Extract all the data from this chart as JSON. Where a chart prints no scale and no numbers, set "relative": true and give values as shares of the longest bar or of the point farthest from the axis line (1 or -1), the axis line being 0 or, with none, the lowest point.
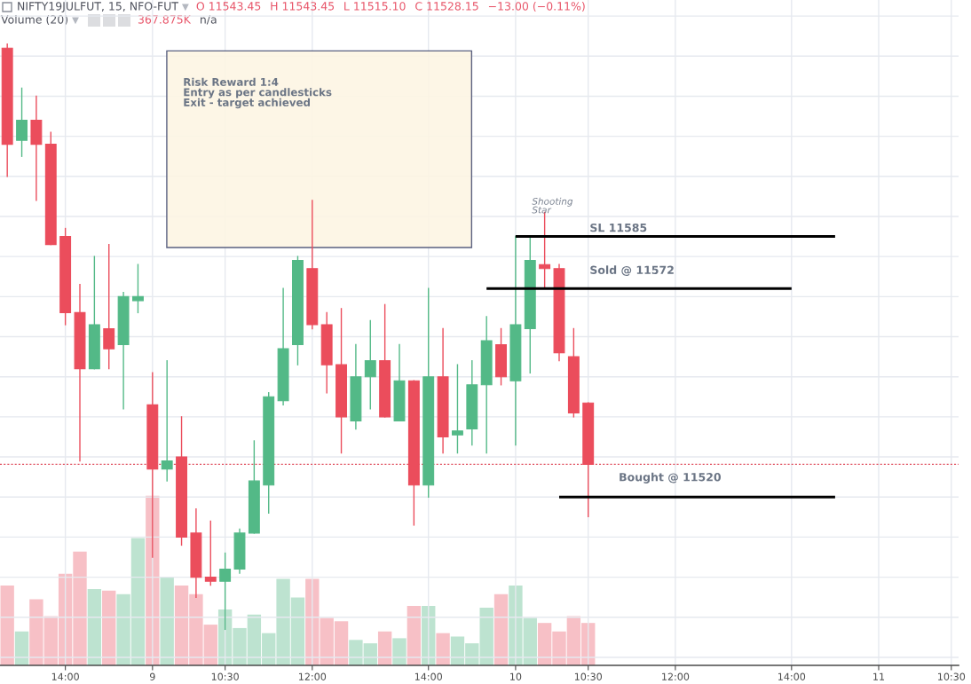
{
  "chart_data": [
    {
      "type": "candlestick",
      "title": "NIFTY19JULFUT, 15, NFO-FUT",
      "categories": [
        null,
        null,
        null,
        null,
        "14:00",
        null,
        null,
        null,
        null,
        null,
        "9",
        null,
        null,
        null,
        null,
        "10:30",
        null,
        null,
        null,
        null,
        null,
        "12:00",
        null,
        null,
        null,
        null,
        null,
        null,
        null,
        "14:00",
        null,
        null,
        null,
        null,
        null,
        "10",
        null,
        null,
        null,
        null,
        "10:30",
        null,
        null,
        null,
        null,
        null,
        "12:00",
        null,
        null,
        null,
        null,
        null,
        null,
        null,
        "14:00",
        null,
        null,
        null,
        null,
        null,
        "11",
        null,
        null,
        null,
        null,
        "10:30"
      ],
      "ohlc": [
        [
          11632,
          11633,
          11600,
          11608
        ],
        [
          11609,
          11622,
          11605,
          11614
        ],
        [
          11614,
          11620,
          11594,
          11608
        ],
        [
          11608,
          11611,
          11583,
          11583
        ],
        [
          11585,
          11587,
          11563,
          11566
        ],
        [
          11566,
          11573,
          11529,
          11552
        ],
        [
          11552,
          11580,
          11552,
          11563
        ],
        [
          11562,
          11583,
          11552,
          11557
        ],
        [
          11558,
          11571,
          11542,
          11570
        ],
        [
          11569,
          11578,
          11566,
          11570
        ],
        [
          11543,
          11551,
          11505,
          11527
        ],
        [
          11527,
          11554,
          11524,
          11529
        ],
        [
          11530,
          11540,
          11508,
          11510
        ],
        [
          11511,
          11517,
          11495,
          11500
        ],
        [
          11500,
          11514,
          11498,
          11499
        ],
        [
          11499,
          11506,
          11487,
          11502
        ],
        [
          11502,
          11512,
          11501,
          11511
        ],
        [
          11511,
          11534,
          11511,
          11524
        ],
        [
          11523,
          11546,
          11516,
          11545
        ],
        [
          11544,
          11572,
          11543,
          11557
        ],
        [
          11558,
          11580,
          11553,
          11579
        ],
        [
          11577,
          11594,
          11562,
          11563
        ],
        [
          11563,
          11566,
          11546,
          11553
        ],
        [
          11553,
          11567,
          11531,
          11540
        ],
        [
          11539,
          11558,
          11537,
          11550
        ],
        [
          11550,
          11564,
          11542,
          11554
        ],
        [
          11554,
          11568,
          11540,
          11540
        ],
        [
          11539,
          11558,
          11539,
          11549
        ],
        [
          11549,
          11549,
          11513,
          11523
        ],
        [
          11523,
          11572,
          11520,
          11550
        ],
        [
          11550,
          11562,
          11531,
          11535
        ],
        [
          11535.5,
          11553,
          11531,
          11536.5
        ],
        [
          11537,
          11554,
          11533,
          11548
        ],
        [
          11548,
          11565,
          11531,
          11559
        ],
        [
          11558,
          11562,
          11548,
          11550
        ],
        [
          11549,
          11585,
          11533,
          11563
        ],
        [
          11562,
          11585,
          11551,
          11579
        ],
        [
          11578,
          11591,
          11572,
          11577
        ],
        [
          11577,
          11578,
          11554,
          11556
        ],
        [
          11555,
          11562,
          11540,
          11541
        ],
        [
          11543.45,
          11543.45,
          11515.1,
          11528.15
        ],
        null,
        null,
        null,
        null,
        null,
        null,
        null,
        null,
        null,
        null,
        null,
        null,
        null,
        null,
        null,
        null,
        null,
        null,
        null,
        null,
        null,
        null,
        null,
        null,
        null
      ],
      "colors": [
        "#eb4d5c",
        "#53b987",
        "#eb4d5c",
        "#eb4d5c",
        "#eb4d5c",
        "#eb4d5c",
        "#53b987",
        "#eb4d5c",
        "#53b987",
        "#53b987",
        "#eb4d5c",
        "#53b987",
        "#eb4d5c",
        "#eb4d5c",
        "#eb4d5c",
        "#53b987",
        "#53b987",
        "#53b987",
        "#53b987",
        "#53b987",
        "#53b987",
        "#eb4d5c",
        "#eb4d5c",
        "#eb4d5c",
        "#53b987",
        "#53b987",
        "#eb4d5c",
        "#53b987",
        "#eb4d5c",
        "#53b987",
        "#eb4d5c",
        "#53b987",
        "#53b987",
        "#53b987",
        "#eb4d5c",
        "#53b987",
        "#53b987",
        "#eb4d5c",
        "#eb4d5c",
        "#eb4d5c",
        "#eb4d5c",
        null,
        null,
        null,
        null,
        null,
        null,
        null,
        null,
        null,
        null,
        null,
        null,
        null,
        null,
        null,
        null,
        null,
        null,
        null,
        null,
        null,
        null,
        null,
        null,
        null
      ],
      "ylim": [
        11478,
        11644
      ],
      "yticks": [
        {
          "value": 11480,
          "label": null
        },
        {
          "value": 11490,
          "label": null
        },
        {
          "value": 11500,
          "label": null
        },
        {
          "value": 11510,
          "label": null
        },
        {
          "value": 11520,
          "label": null
        },
        {
          "value": 11530,
          "label": null
        },
        {
          "value": 11540,
          "label": null
        },
        {
          "value": 11550,
          "label": null
        },
        {
          "value": 11560,
          "label": null
        },
        {
          "value": 11570,
          "label": null
        },
        {
          "value": 11580,
          "label": null
        },
        {
          "value": 11590,
          "label": null
        },
        {
          "value": 11600,
          "label": null
        },
        {
          "value": 11610,
          "label": null
        },
        {
          "value": 11620,
          "label": null
        },
        {
          "value": 11630,
          "label": null
        },
        {
          "value": 11640,
          "label": null
        }
      ],
      "tick_labels": "x",
      "grid": true,
      "ref_lines": [
        {
          "axis": "y",
          "value": 11585,
          "label": "SL 11585",
          "color": "#000000"
        },
        {
          "axis": "y",
          "value": 11572,
          "label": "Sold @ 11572",
          "color": "#000000"
        },
        {
          "axis": "y",
          "value": 11520,
          "label": "Bought @ 11520",
          "color": "#000000"
        },
        {
          "axis": "y",
          "value": 11528.15,
          "color": "#e0505f",
          "line_style": "dotted"
        }
      ],
      "annotations": [
        "O 11543.45",
        "H 11543.45",
        "L 11515.10",
        "C 11528.15",
        "−13.00 (−0.11%)",
        "Risk Reward 1:4\nEntry as per candlesticks\nExit - target achieved",
        "Shooting\nStar"
      ]
    },
    {
      "type": "bar",
      "title": "Volume (20)",
      "relative": true,
      "tick_labels": false,
      "categories": [
        null,
        null,
        null,
        null,
        null,
        null,
        null,
        null,
        null,
        null,
        null,
        null,
        null,
        null,
        null,
        null,
        null,
        null,
        null,
        null,
        null,
        null,
        null,
        null,
        null,
        null,
        null,
        null,
        null,
        null,
        null,
        null,
        null,
        null,
        null,
        null,
        null,
        null,
        null,
        null,
        null,
        null,
        null,
        null,
        null,
        null,
        null,
        null,
        null,
        null,
        null,
        null,
        null,
        null,
        null,
        null,
        null,
        null,
        null,
        null,
        null,
        null,
        null,
        null,
        null,
        null
      ],
      "values": [
        0.47,
        0.2,
        0.39,
        0.29,
        0.54,
        0.67,
        0.45,
        0.44,
        0.42,
        0.75,
        1.0,
        0.52,
        0.47,
        0.42,
        0.24,
        0.33,
        0.22,
        0.3,
        0.19,
        0.51,
        0.4,
        0.51,
        0.28,
        0.26,
        0.15,
        0.13,
        0.2,
        0.16,
        0.35,
        0.35,
        0.19,
        0.17,
        0.13,
        0.34,
        0.42,
        0.47,
        0.28,
        0.25,
        0.2,
        0.29,
        0.25,
        null,
        null,
        null,
        null,
        null,
        null,
        null,
        null,
        null,
        null,
        null,
        null,
        null,
        null,
        null,
        null,
        null,
        null,
        null,
        null,
        null,
        null,
        null,
        null,
        null
      ],
      "colors": [
        "#f7c0c6",
        "#bde3d0",
        "#f7c0c6",
        "#f7c0c6",
        "#f7c0c6",
        "#f7c0c6",
        "#bde3d0",
        "#f7c0c6",
        "#bde3d0",
        "#bde3d0",
        "#f7c0c6",
        "#bde3d0",
        "#f7c0c6",
        "#f7c0c6",
        "#f7c0c6",
        "#bde3d0",
        "#bde3d0",
        "#bde3d0",
        "#bde3d0",
        "#bde3d0",
        "#bde3d0",
        "#f7c0c6",
        "#f7c0c6",
        "#f7c0c6",
        "#bde3d0",
        "#bde3d0",
        "#f7c0c6",
        "#bde3d0",
        "#f7c0c6",
        "#bde3d0",
        "#f7c0c6",
        "#bde3d0",
        "#bde3d0",
        "#bde3d0",
        "#f7c0c6",
        "#bde3d0",
        "#bde3d0",
        "#f7c0c6",
        "#f7c0c6",
        "#f7c0c6",
        "#f7c0c6",
        null,
        null,
        null,
        null,
        null,
        null,
        null,
        null,
        null,
        null,
        null,
        null,
        null,
        null,
        null,
        null,
        null,
        null,
        null,
        null,
        null,
        null,
        null,
        null,
        null
      ],
      "annotations": [
        "367.875K",
        "n/a"
      ]
    }
  ]
}
